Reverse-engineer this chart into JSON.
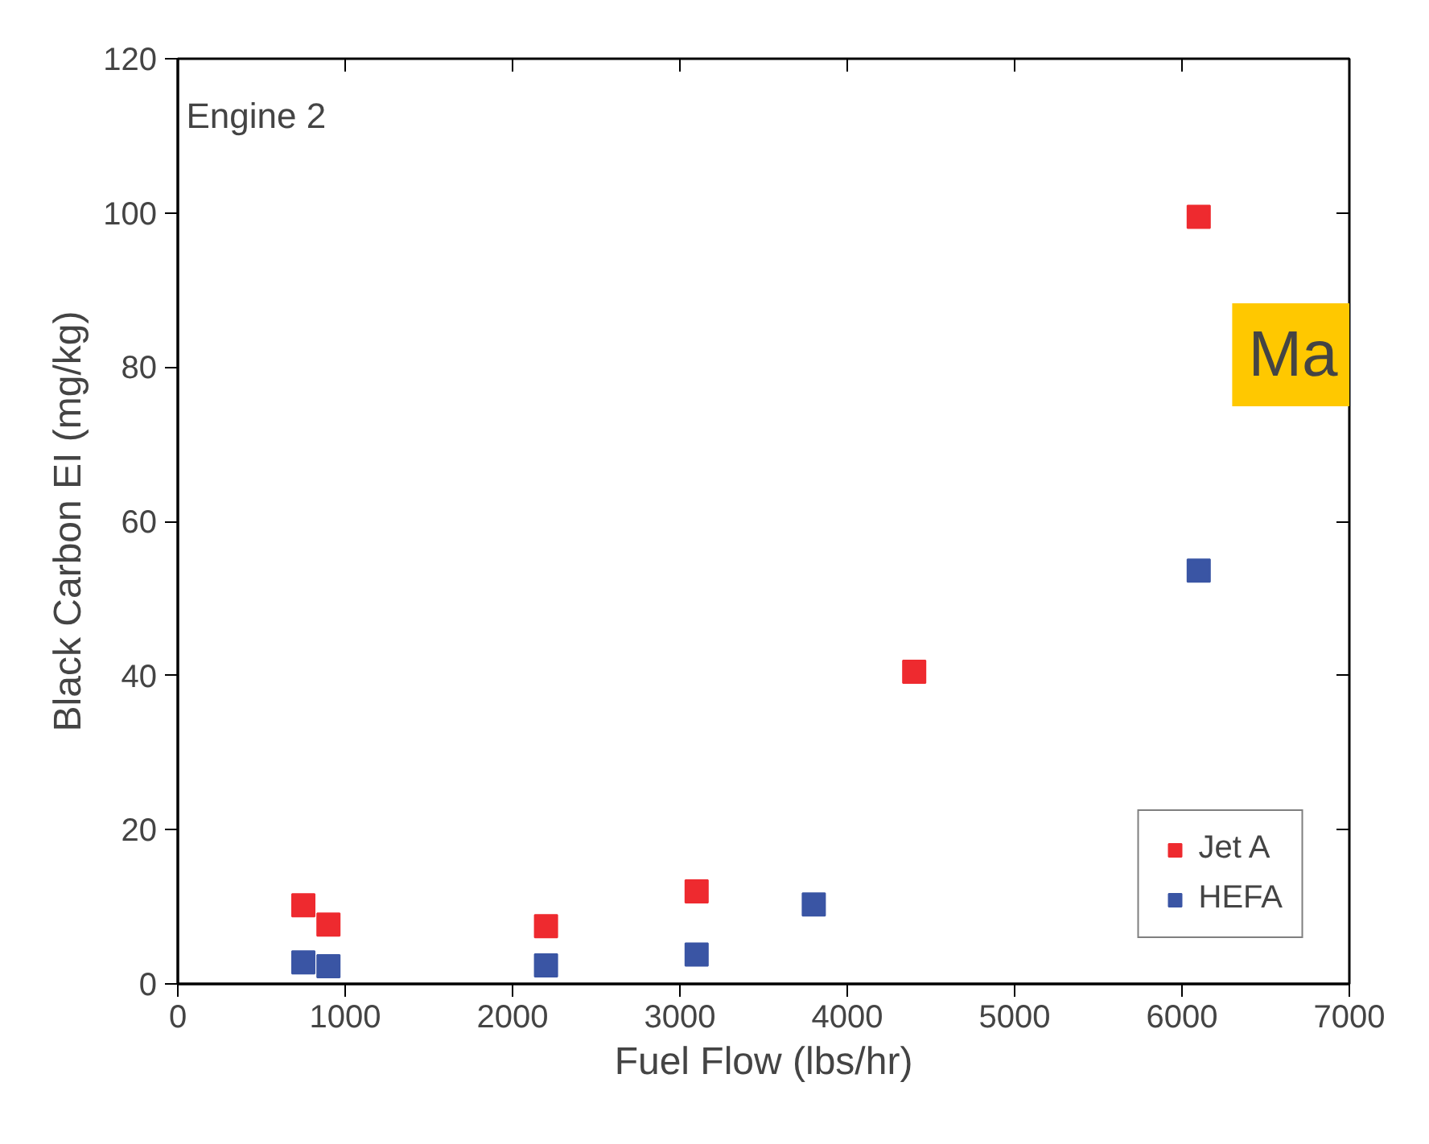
{
  "chart_data": {
    "type": "scatter",
    "xlabel": "Fuel Flow (lbs/hr)",
    "ylabel": "Black Carbon EI (mg/kg)",
    "annotations": [
      "Engine 2",
      "Ma"
    ],
    "xlim": [
      0,
      7000
    ],
    "xticks": [
      0,
      1000,
      2000,
      3000,
      4000,
      5000,
      6000,
      7000
    ],
    "ylim": [
      0,
      120
    ],
    "yticks": [
      0,
      20,
      40,
      60,
      80,
      100,
      120
    ],
    "marker": "square",
    "legend": "bottom right",
    "grid": false,
    "series": [
      {
        "name": "Jet A",
        "color": "#ee2a2f",
        "x": [
          750,
          900,
          2200,
          3100,
          4400,
          6100
        ],
        "values": [
          10.2,
          7.7,
          7.5,
          12,
          40.5,
          99.5
        ]
      },
      {
        "name": "HEFA",
        "color": "#3a55a4",
        "x": [
          750,
          900,
          2200,
          3100,
          3800,
          6100
        ],
        "values": [
          2.8,
          2.3,
          2.4,
          3.8,
          10.3,
          53.6
        ]
      }
    ]
  }
}
